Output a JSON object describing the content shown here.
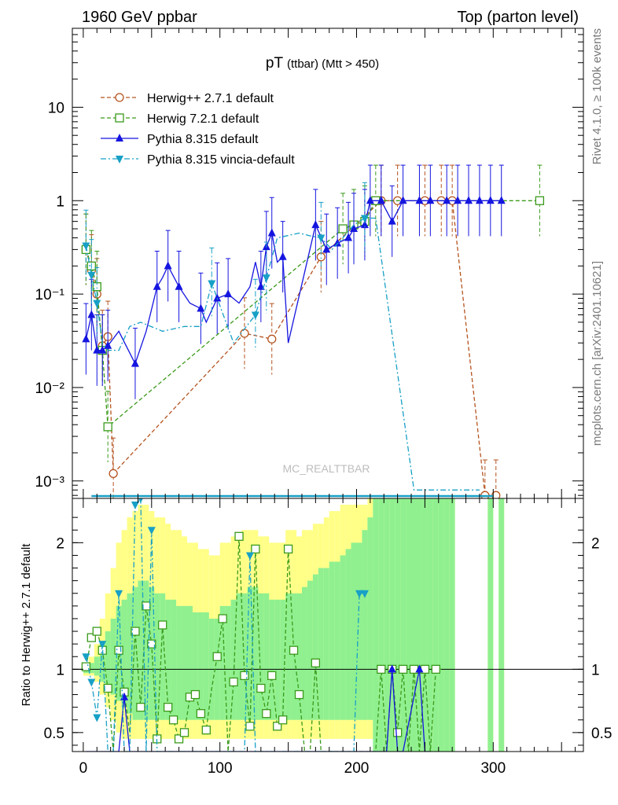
{
  "header": {
    "left": "1960 GeV ppbar",
    "right": "Top (parton level)"
  },
  "side": {
    "rivet": "Rivet 4.1.0, ≥ 100k events",
    "mcplots": "mcplots.cern.ch [arXiv:2401.10621]"
  },
  "watermark": "MC_REALTTBAR",
  "chart_data": [
    {
      "type": "line",
      "title": "pT (ttbar) (Mtt > 450)",
      "title_main": "pT",
      "title_sub": "(ttbar) (Mtt > 450)",
      "yscale": "log",
      "xlim": [
        -8,
        366
      ],
      "ylim": [
        0.00065,
        70
      ],
      "y_ticks": [
        {
          "value": 0.001,
          "label": "10⁻³"
        },
        {
          "value": 0.01,
          "label": "10⁻²"
        },
        {
          "value": 0.1,
          "label": "10⁻¹"
        },
        {
          "value": 1,
          "label": "1"
        },
        {
          "value": 10,
          "label": "10"
        }
      ],
      "legend_position": "top-left",
      "series": [
        {
          "name": "Herwig++ 2.7.1 default",
          "color": "#b5531f",
          "style": "dashed",
          "marker": "open-circle",
          "x": [
            2,
            6,
            10,
            14,
            18,
            22,
            118,
            138,
            174,
            218,
            230,
            250,
            262,
            270,
            294,
            302
          ],
          "y": [
            0.3,
            0.18,
            0.1,
            0.028,
            0.035,
            0.0012,
            0.038,
            0.033,
            0.25,
            1.0,
            1.0,
            1.0,
            1.0,
            1.0,
            0.0007,
            0.0007
          ]
        },
        {
          "name": "Herwig 7.2.1 default",
          "color": "#3a9a1a",
          "style": "dashed",
          "marker": "open-square",
          "x": [
            2,
            6,
            10,
            14,
            18,
            190,
            198,
            206,
            214,
            334
          ],
          "y": [
            0.3,
            0.2,
            0.12,
            0.025,
            0.0038,
            0.5,
            0.55,
            0.6,
            1.0,
            1.0
          ]
        },
        {
          "name": "Pythia 8.315 default",
          "color": "#1515e0",
          "style": "solid",
          "marker": "filled-triangle-up",
          "x": [
            2,
            6,
            10,
            14,
            18,
            26,
            38,
            46,
            54,
            58,
            62,
            70,
            78,
            86,
            90,
            98,
            106,
            114,
            122,
            126,
            130,
            134,
            138,
            142,
            146,
            150,
            170,
            178,
            186,
            194,
            198,
            206,
            210,
            218,
            226,
            234,
            246,
            254,
            266,
            274,
            282,
            290,
            298,
            306
          ],
          "y": [
            0.033,
            0.06,
            0.025,
            0.025,
            0.028,
            0.04,
            0.018,
            0.04,
            0.12,
            0.15,
            0.2,
            0.12,
            0.08,
            0.07,
            0.05,
            0.09,
            0.1,
            0.08,
            0.12,
            0.22,
            0.12,
            0.32,
            0.45,
            0.22,
            0.25,
            0.03,
            0.55,
            0.3,
            0.35,
            0.4,
            0.5,
            0.55,
            1.0,
            1.0,
            0.6,
            1.0,
            1.0,
            1.0,
            1.0,
            1.0,
            1.0,
            1.0,
            1.0,
            1.0
          ],
          "markers_x": [
            2,
            6,
            10,
            14,
            18,
            38,
            54,
            62,
            70,
            86,
            98,
            106,
            130,
            134,
            138,
            146,
            170,
            178,
            186,
            194,
            198,
            206,
            210,
            218,
            226,
            234,
            246,
            254,
            266,
            274,
            282,
            290,
            298,
            306
          ]
        },
        {
          "name": "Pythia 8.315 vincia-default",
          "color": "#18a0c6",
          "style": "dashdot",
          "marker": "filled-triangle-down",
          "x": [
            2,
            6,
            10,
            14,
            18,
            26,
            34,
            42,
            58,
            74,
            86,
            94,
            110,
            126,
            134,
            142,
            158,
            166,
            174,
            182,
            190,
            198,
            206,
            214,
            242,
            290
          ],
          "y": [
            0.33,
            0.16,
            0.08,
            0.03,
            0.025,
            0.025,
            0.045,
            0.05,
            0.04,
            0.045,
            0.045,
            0.13,
            0.03,
            0.06,
            0.15,
            0.4,
            0.45,
            0.42,
            0.4,
            0.3,
            0.4,
            0.55,
            0.65,
            0.65,
            0.0008,
            0.0008
          ],
          "markers_x": [
            2,
            6,
            10,
            94,
            126,
            134,
            174,
            206
          ]
        }
      ]
    },
    {
      "type": "line",
      "ylabel": "Ratio to Herwig++ 2.7.1 default",
      "xlim": [
        -8,
        366
      ],
      "ylim": [
        0.35,
        2.35
      ],
      "x_ticks": [
        0,
        100,
        200,
        300
      ],
      "y_ticks": [
        {
          "value": 0.5,
          "label": "0.5"
        },
        {
          "value": 1,
          "label": "1"
        },
        {
          "value": 2,
          "label": "2"
        }
      ],
      "reference_line": 1,
      "bands": {
        "x": [
          2,
          6,
          10,
          14,
          18,
          22,
          26,
          30,
          34,
          38,
          42,
          46,
          50,
          54,
          58,
          62,
          66,
          70,
          74,
          78,
          82,
          86,
          90,
          94,
          98,
          102,
          106,
          110,
          114,
          118,
          122,
          126,
          130,
          134,
          138,
          142,
          146,
          150,
          154,
          158,
          162,
          166,
          170,
          174,
          178,
          182,
          186,
          190,
          194,
          198,
          202,
          206,
          210,
          214,
          218,
          222,
          226,
          230,
          234,
          238,
          242,
          246,
          250,
          254,
          258,
          262,
          266,
          270,
          298,
          306
        ],
        "yellow_low": [
          0.95,
          0.95,
          0.9,
          0.8,
          0.7,
          0.6,
          0.5,
          0.45,
          0.45,
          0.45,
          0.45,
          0.45,
          0.45,
          0.45,
          0.45,
          0.45,
          0.45,
          0.45,
          0.45,
          0.45,
          0.45,
          0.45,
          0.45,
          0.45,
          0.45,
          0.45,
          0.45,
          0.45,
          0.45,
          0.45,
          0.45,
          0.45,
          0.45,
          0.45,
          0.45,
          0.45,
          0.45,
          0.45,
          0.45,
          0.45,
          0.45,
          0.45,
          0.45,
          0.45,
          0.45,
          0.45,
          0.45,
          0.45,
          0.45,
          0.45,
          0.45,
          0.45,
          0.45,
          0.45,
          0.35,
          0.35,
          0.35,
          0.35,
          0.35,
          0.35,
          0.35,
          0.35,
          0.35,
          0.35,
          0.35,
          0.35,
          0.35,
          0.35,
          0.35,
          0.35
        ],
        "yellow_high": [
          1.05,
          1.1,
          1.2,
          1.4,
          1.6,
          1.8,
          2.0,
          2.1,
          2.2,
          2.25,
          2.3,
          2.3,
          2.25,
          2.2,
          2.2,
          2.15,
          2.1,
          2.1,
          2.05,
          2.0,
          2.0,
          1.95,
          1.95,
          1.9,
          1.9,
          2.0,
          2.0,
          2.05,
          2.05,
          2.1,
          2.1,
          2.1,
          2.05,
          2.05,
          2.0,
          2.0,
          2.0,
          2.1,
          2.1,
          2.05,
          2.1,
          2.1,
          2.15,
          2.15,
          2.2,
          2.25,
          2.25,
          2.3,
          2.3,
          2.3,
          2.3,
          2.3,
          2.35,
          2.35,
          2.35,
          2.35,
          2.35,
          2.35,
          2.35,
          2.35,
          2.35,
          2.35,
          2.35,
          2.35,
          2.35,
          2.35,
          2.35,
          2.35,
          2.35,
          2.35
        ],
        "green_low": [
          0.97,
          0.97,
          0.95,
          0.9,
          0.85,
          0.8,
          0.75,
          0.7,
          0.65,
          0.6,
          0.6,
          0.6,
          0.6,
          0.6,
          0.6,
          0.6,
          0.6,
          0.6,
          0.6,
          0.6,
          0.6,
          0.6,
          0.6,
          0.6,
          0.6,
          0.6,
          0.6,
          0.6,
          0.6,
          0.6,
          0.6,
          0.6,
          0.6,
          0.6,
          0.6,
          0.6,
          0.6,
          0.6,
          0.6,
          0.6,
          0.6,
          0.6,
          0.6,
          0.6,
          0.6,
          0.6,
          0.6,
          0.6,
          0.6,
          0.6,
          0.6,
          0.6,
          0.6,
          0.35,
          0.35,
          0.35,
          0.35,
          0.35,
          0.35,
          0.35,
          0.35,
          0.35,
          0.35,
          0.35,
          0.35,
          0.35,
          0.35,
          0.35,
          0.35,
          0.35
        ],
        "green_high": [
          1.03,
          1.05,
          1.1,
          1.2,
          1.3,
          1.4,
          1.5,
          1.55,
          1.6,
          1.65,
          1.7,
          1.7,
          1.65,
          1.6,
          1.6,
          1.55,
          1.55,
          1.5,
          1.5,
          1.5,
          1.45,
          1.45,
          1.45,
          1.4,
          1.4,
          1.5,
          1.5,
          1.55,
          1.6,
          1.6,
          1.65,
          1.65,
          1.6,
          1.6,
          1.55,
          1.55,
          1.55,
          1.6,
          1.6,
          1.6,
          1.65,
          1.7,
          1.75,
          1.8,
          1.8,
          1.85,
          1.85,
          1.9,
          1.95,
          2.0,
          2.0,
          2.1,
          2.2,
          2.35,
          2.35,
          2.35,
          2.35,
          2.35,
          2.35,
          2.35,
          2.35,
          2.35,
          2.35,
          2.35,
          2.35,
          2.35,
          2.35,
          2.35,
          2.35,
          2.35
        ]
      },
      "series": [
        {
          "name": "Herwig 7.2.1 default",
          "color": "#3a9a1a",
          "style": "dashed",
          "marker": "open-square",
          "x": [
            2,
            6,
            10,
            14,
            18,
            22,
            26,
            30,
            34,
            38,
            42,
            46,
            50,
            54,
            58,
            62,
            66,
            70,
            74,
            78,
            82,
            86,
            90,
            94,
            98,
            102,
            106,
            110,
            114,
            118,
            122,
            126,
            130,
            134,
            138,
            142,
            146,
            150,
            154,
            158,
            162,
            166,
            170,
            174,
            178,
            182,
            186,
            190,
            194,
            198,
            206,
            214,
            218,
            222,
            226,
            230,
            234,
            238,
            242,
            246,
            250,
            254,
            258,
            262
          ],
          "y": [
            1.02,
            1.25,
            1.3,
            1.15,
            0.85,
            0.35,
            1.15,
            0.82,
            0.5,
            1.3,
            0.7,
            1.5,
            1.2,
            0.45,
            1.35,
            0.7,
            0.6,
            0.45,
            0.5,
            0.78,
            0.8,
            0.65,
            0.52,
            0.85,
            1.1,
            1.4,
            0.35,
            0.9,
            2.05,
            0.95,
            0.55,
            1.95,
            0.85,
            0.65,
            0.95,
            0.55,
            0.6,
            1.95,
            1.15,
            0.8,
            0.35,
            0.35,
            1.05,
            0.35,
            0.35,
            0.35,
            0.35,
            0.35,
            0.35,
            0.35,
            0.35,
            0.35,
            1.0,
            0.35,
            1.0,
            0.5,
            1.0,
            0.35,
            1.0,
            0.35,
            1.0,
            0.35,
            1.0,
            1.0
          ],
          "markers_x": [
            2,
            6,
            10,
            14,
            18,
            26,
            30,
            38,
            42,
            46,
            50,
            54,
            58,
            62,
            66,
            70,
            74,
            78,
            82,
            86,
            90,
            98,
            102,
            110,
            114,
            118,
            122,
            126,
            130,
            134,
            138,
            142,
            146,
            150,
            154,
            158,
            170,
            218,
            226,
            230,
            234,
            242,
            250,
            258
          ]
        },
        {
          "name": "Pythia 8.315 default",
          "color": "#1515e0",
          "style": "solid",
          "marker": "filled-triangle-up",
          "x": [
            2,
            6,
            10,
            14,
            18,
            22,
            26,
            30,
            34,
            38,
            42,
            46,
            50,
            54,
            58,
            62,
            66,
            70,
            74,
            78,
            82,
            86,
            90,
            94,
            98,
            102,
            106,
            110,
            114,
            118,
            122,
            126,
            130,
            134,
            138,
            142,
            146,
            150,
            154,
            158,
            162,
            166,
            170,
            174,
            178,
            186,
            194,
            206,
            218,
            222,
            226,
            230,
            234,
            246,
            250,
            254
          ],
          "y": [
            0.35,
            0.35,
            0.35,
            0.35,
            0.35,
            0.35,
            0.35,
            0.78,
            0.35,
            0.35,
            0.35,
            0.35,
            0.35,
            0.35,
            0.35,
            0.35,
            0.35,
            0.35,
            0.35,
            0.35,
            0.35,
            0.35,
            0.35,
            0.35,
            0.35,
            0.35,
            0.35,
            0.35,
            0.35,
            0.35,
            0.35,
            0.35,
            0.35,
            0.35,
            0.35,
            0.35,
            0.35,
            0.35,
            0.35,
            0.35,
            0.35,
            0.35,
            0.35,
            0.35,
            0.35,
            0.35,
            0.35,
            0.35,
            0.35,
            0.35,
            1.0,
            0.35,
            0.35,
            1.0,
            0.35,
            0.35
          ],
          "markers_x": [
            30,
            226,
            246
          ]
        },
        {
          "name": "Pythia 8.315 vincia-default",
          "color": "#18a0c6",
          "style": "dashdot",
          "marker": "filled-triangle-down",
          "x": [
            2,
            6,
            10,
            14,
            18,
            22,
            26,
            30,
            34,
            38,
            42,
            46,
            50,
            54,
            58,
            62,
            66,
            70,
            74,
            78,
            82,
            86,
            90,
            94,
            98,
            102,
            106,
            110,
            114,
            118,
            122,
            126,
            130,
            134,
            138,
            142,
            146,
            150,
            154,
            158,
            162,
            166,
            170,
            174,
            178,
            182,
            186,
            190,
            194,
            198,
            202,
            206
          ],
          "y": [
            1.1,
            0.9,
            0.62,
            1.2,
            0.35,
            0.35,
            1.6,
            0.35,
            0.35,
            2.3,
            2.35,
            0.35,
            2.1,
            0.35,
            0.35,
            0.35,
            0.35,
            0.35,
            0.35,
            0.35,
            0.35,
            0.35,
            0.35,
            0.35,
            0.35,
            0.35,
            0.35,
            0.35,
            0.35,
            0.35,
            1.9,
            0.35,
            0.35,
            0.35,
            0.35,
            0.35,
            0.35,
            0.35,
            0.35,
            0.35,
            0.35,
            0.35,
            0.35,
            0.35,
            0.35,
            0.35,
            0.35,
            0.35,
            0.35,
            0.35,
            1.6,
            1.6
          ],
          "markers_x": [
            2,
            6,
            10,
            14,
            26,
            38,
            42,
            50,
            122,
            202,
            206
          ]
        }
      ]
    }
  ]
}
